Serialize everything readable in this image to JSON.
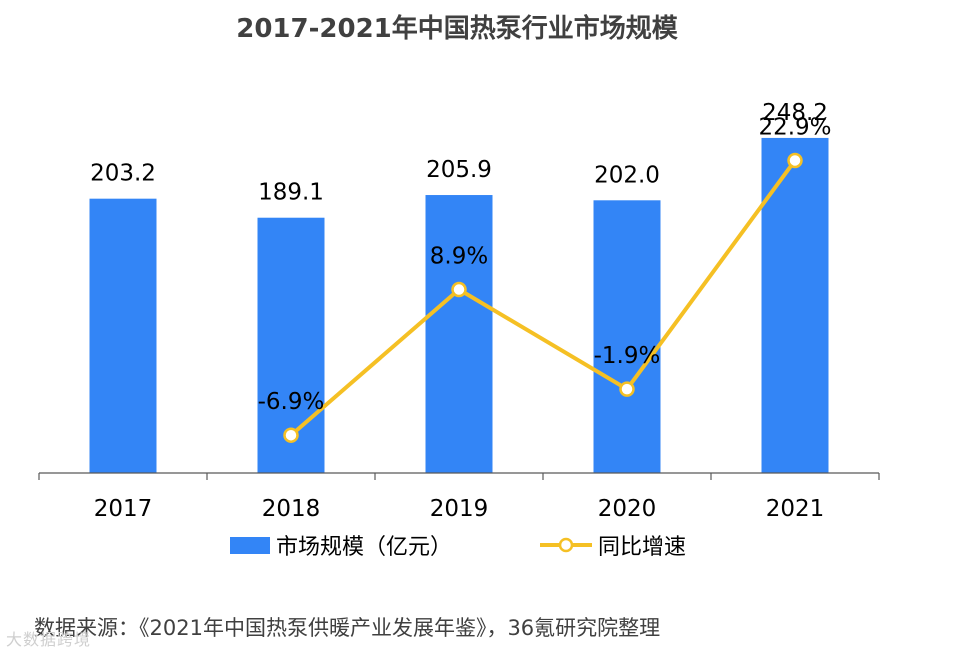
{
  "chart_data": {
    "type": "bar+line",
    "title": "2017-2021年中国热泵行业市场规模",
    "categories": [
      "2017",
      "2018",
      "2019",
      "2020",
      "2021"
    ],
    "series": [
      {
        "name": "市场规模（亿元）",
        "type": "bar",
        "values": [
          203.2,
          189.1,
          205.9,
          202.0,
          248.2
        ],
        "labels": [
          "203.2",
          "189.1",
          "205.9",
          "202.0",
          "248.2"
        ]
      },
      {
        "name": "同比增速",
        "type": "line",
        "values": [
          null,
          -6.9,
          8.9,
          -1.9,
          22.9
        ],
        "labels": [
          null,
          "-6.9%",
          "8.9%",
          "-1.9%",
          "22.9%"
        ]
      }
    ],
    "bar_ylim": [
      0,
      280
    ],
    "line_ylim": [
      -11,
      30
    ],
    "grid": false,
    "legend_position": "bottom",
    "colors": {
      "bar": "#3385f6",
      "line": "#f5c024",
      "marker_fill": "#ffffff"
    }
  },
  "legend": {
    "bar_label": "市场规模（亿元）",
    "line_label": "同比增速"
  },
  "source": "数据来源：《2021年中国热泵供暖产业发展年鉴》，36氪研究院整理",
  "watermark": "大数据跨境"
}
